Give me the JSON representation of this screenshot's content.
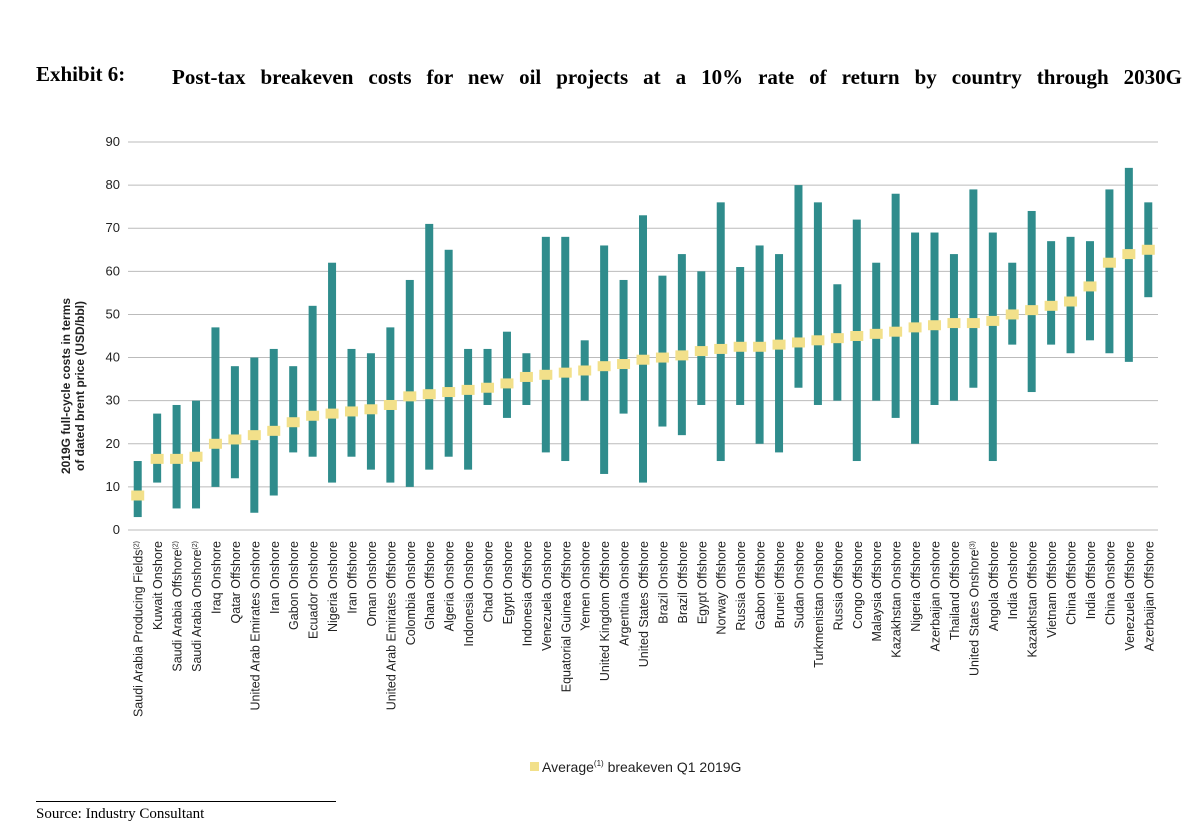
{
  "header": {
    "exhibit_label": "Exhibit 6:",
    "title": "Post-tax breakeven costs for new oil projects at a 10% rate of return by country through 2030G"
  },
  "footer": {
    "source": "Source: Industry Consultant"
  },
  "colors": {
    "bar": "#2f8c8c",
    "average": "#f2e08a",
    "grid": "#bbbbbb",
    "text": "#222222"
  },
  "chart_data": {
    "type": "bar",
    "subtype": "floating-range-with-marker",
    "ylabel": "2019G full-cycle costs in terms of dated brent price (USD/bbl)",
    "ylim": [
      0,
      90
    ],
    "yticks": [
      0,
      10,
      20,
      30,
      40,
      50,
      60,
      70,
      80,
      90
    ],
    "grid": true,
    "legend_position": "bottom-center",
    "legend": {
      "label": "Average",
      "superscript": "(1)",
      "suffix": " breakeven Q1 2019G"
    },
    "categories": [
      {
        "name": "Saudi Arabia  Producing Fields",
        "note": "(2)"
      },
      {
        "name": "Kuwait Onshore"
      },
      {
        "name": "Saudi Arabia Offshore",
        "note": "(2)"
      },
      {
        "name": "Saudi Arabia Onshore",
        "note": "(2)"
      },
      {
        "name": "Iraq Onshore"
      },
      {
        "name": "Qatar Offshore"
      },
      {
        "name": "United Arab Emirates Onshore"
      },
      {
        "name": "Iran Onshore"
      },
      {
        "name": "Gabon Onshore"
      },
      {
        "name": "Ecuador Onshore"
      },
      {
        "name": "Nigeria Onshore"
      },
      {
        "name": "Iran Offshore"
      },
      {
        "name": "Oman Onshore"
      },
      {
        "name": "United Arab Emirates Offshore"
      },
      {
        "name": "Colombia Onshore"
      },
      {
        "name": "Ghana Offshore"
      },
      {
        "name": "Algeria Onshore"
      },
      {
        "name": "Indonesia Onshore"
      },
      {
        "name": "Chad Onshore"
      },
      {
        "name": "Egypt Onshore"
      },
      {
        "name": "Indonesia Offshore"
      },
      {
        "name": "Venezuela Onshore"
      },
      {
        "name": "Equatorial Guinea Offshore"
      },
      {
        "name": "Yemen Onshore"
      },
      {
        "name": "United Kingdom Offshore"
      },
      {
        "name": "Argentina Onshore"
      },
      {
        "name": "United States Offshore"
      },
      {
        "name": "Brazil Onshore"
      },
      {
        "name": "Brazil Offshore"
      },
      {
        "name": "Egypt Offshore"
      },
      {
        "name": "Norway Offshore"
      },
      {
        "name": "Russia Onshore"
      },
      {
        "name": "Gabon Offshore"
      },
      {
        "name": "Brunei Offshore"
      },
      {
        "name": "Sudan Onshore"
      },
      {
        "name": "Turkmenistan Onshore"
      },
      {
        "name": "Russia Offshore"
      },
      {
        "name": "Congo Offshore"
      },
      {
        "name": "Malaysia Offshore"
      },
      {
        "name": "Kazakhstan Onshore"
      },
      {
        "name": "Nigeria Offshore"
      },
      {
        "name": "Azerbaijan Onshore"
      },
      {
        "name": "Thailand Offshore"
      },
      {
        "name": "United States Onshore",
        "note": "(3)"
      },
      {
        "name": "Angola Offshore"
      },
      {
        "name": "India Onshore"
      },
      {
        "name": "Kazakhstan Offshore"
      },
      {
        "name": "Vietnam Offshore"
      },
      {
        "name": "China Offshore"
      },
      {
        "name": "India Offshore"
      },
      {
        "name": "China Onshore"
      },
      {
        "name": "Venezuela Offshore"
      },
      {
        "name": "Azerbaijan Offshore"
      }
    ],
    "low": [
      3,
      11,
      5,
      5,
      10,
      12,
      4,
      8,
      18,
      17,
      11,
      17,
      14,
      11,
      10,
      14,
      17,
      14,
      29,
      26,
      29,
      18,
      16,
      30,
      13,
      27,
      11,
      24,
      22,
      29,
      16,
      29,
      20,
      18,
      33,
      29,
      30,
      16,
      30,
      26,
      20,
      29,
      30,
      33,
      16,
      43,
      32,
      43,
      41,
      44,
      41,
      39,
      54
    ],
    "high": [
      16,
      27,
      29,
      30,
      47,
      38,
      40,
      42,
      38,
      52,
      62,
      42,
      41,
      47,
      58,
      71,
      65,
      42,
      42,
      46,
      41,
      68,
      68,
      44,
      66,
      58,
      73,
      59,
      64,
      60,
      76,
      61,
      66,
      64,
      80,
      76,
      57,
      72,
      62,
      78,
      69,
      69,
      64,
      79,
      69,
      62,
      74,
      67,
      68,
      67,
      79,
      84,
      76
    ],
    "average": [
      8,
      16.5,
      16.5,
      17,
      20,
      21,
      22,
      23,
      25,
      26.5,
      27,
      27.5,
      28,
      29,
      31,
      31.5,
      32,
      32.5,
      33,
      34,
      35.5,
      36,
      36.5,
      37,
      38,
      38.5,
      39.5,
      40,
      40.5,
      41.5,
      42,
      42.5,
      42.5,
      43,
      43.5,
      44,
      44.5,
      45,
      45.5,
      46,
      47,
      47.5,
      48,
      48,
      48.5,
      50,
      51,
      52,
      53,
      56.5,
      62,
      64,
      65
    ]
  }
}
